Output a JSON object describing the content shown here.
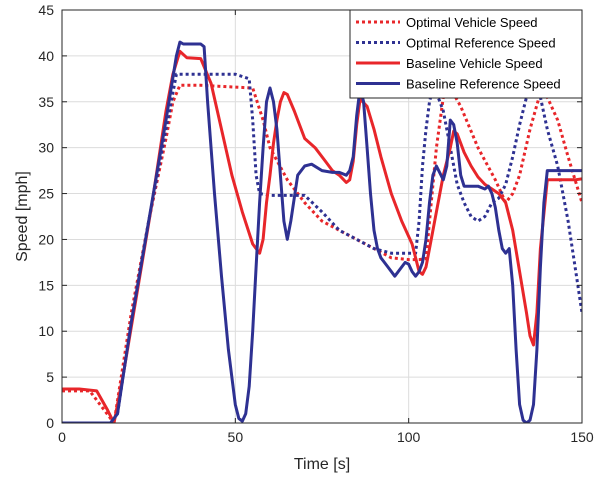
{
  "chart_data": {
    "type": "line",
    "title": "",
    "xlabel": "Time [s]",
    "ylabel": "Speed [mph]",
    "xlim": [
      0,
      150
    ],
    "ylim": [
      0,
      45
    ],
    "xticks": [
      0,
      50,
      100,
      150
    ],
    "yticks": [
      0,
      5,
      10,
      15,
      20,
      25,
      30,
      35,
      40,
      45
    ],
    "grid": true,
    "legend_position": "top-right",
    "series": [
      {
        "name": "Optimal Vehicle Speed",
        "color": "#e8262a",
        "dash": "dotted",
        "x": [
          0,
          8,
          12,
          15,
          20,
          25,
          30,
          32,
          34,
          36,
          40,
          45,
          50,
          55,
          58,
          60,
          65,
          70,
          75,
          80,
          85,
          90,
          95,
          100,
          103,
          105,
          106,
          108,
          110,
          112,
          115,
          120,
          125,
          128,
          130,
          132,
          135,
          138,
          140,
          143,
          146,
          150
        ],
        "y": [
          3.5,
          3.5,
          1.5,
          0,
          12,
          22,
          31,
          35,
          36.8,
          36.8,
          36.8,
          36.7,
          36.6,
          36.5,
          33,
          30,
          26.5,
          24,
          22,
          21,
          20,
          19,
          18,
          17.8,
          17.8,
          17.9,
          22,
          30,
          35.5,
          36.5,
          34.5,
          30,
          26.5,
          24,
          25,
          27,
          32,
          36,
          35.5,
          33,
          29,
          24
        ]
      },
      {
        "name": "Optimal Reference Speed",
        "color": "#2e3192",
        "dash": "dotted",
        "x": [
          0,
          14,
          16,
          20,
          25,
          30,
          33,
          36,
          45,
          50,
          54,
          55,
          56,
          57,
          60,
          65,
          70,
          75,
          80,
          85,
          90,
          95,
          100,
          102,
          103,
          104,
          105,
          106,
          107,
          108,
          110,
          112,
          114,
          116,
          118,
          120,
          122,
          124,
          126,
          128,
          130,
          132,
          134,
          135,
          136,
          137,
          138,
          140,
          143,
          146,
          148,
          150
        ],
        "y": [
          0,
          0,
          1,
          11,
          22,
          32,
          38,
          38,
          38,
          38,
          37.5,
          33,
          27,
          25,
          24.8,
          24.8,
          24.8,
          23,
          21,
          20,
          19,
          18.5,
          18.5,
          18.5,
          22,
          28,
          32,
          35,
          36.5,
          36,
          34,
          30,
          26,
          24,
          22.5,
          22,
          22.5,
          24,
          24.5,
          26,
          29,
          32.5,
          35.5,
          36.5,
          36.5,
          36.4,
          35.5,
          32,
          28,
          22,
          17,
          12
        ]
      },
      {
        "name": "Baseline Vehicle Speed",
        "color": "#e8262a",
        "dash": "solid",
        "x": [
          0,
          5,
          10,
          13,
          15,
          18,
          22,
          26,
          30,
          32,
          34,
          36,
          40,
          43,
          46,
          49,
          52,
          55,
          57,
          58,
          59,
          60,
          61,
          62,
          63,
          64,
          65,
          67,
          70,
          73,
          76,
          78,
          80,
          82,
          83,
          84,
          85,
          86,
          88,
          90,
          92,
          95,
          98,
          101,
          102,
          103,
          104,
          105,
          106,
          108,
          110,
          112,
          113,
          114,
          116,
          118,
          120,
          122,
          124,
          126,
          128,
          130,
          132,
          134,
          135,
          136,
          137,
          138,
          140,
          143,
          146,
          148,
          150
        ],
        "y": [
          3.7,
          3.7,
          3.5,
          1.5,
          0,
          6,
          15,
          24,
          34,
          38,
          40.5,
          39.8,
          39.7,
          37,
          32,
          27,
          23,
          19.5,
          18.5,
          20,
          24,
          27,
          30.5,
          33,
          35,
          36,
          35.8,
          34,
          31,
          30,
          28.5,
          27.5,
          27,
          26.2,
          26.5,
          28.5,
          32.5,
          35.3,
          34.5,
          32,
          29,
          25,
          22,
          19.5,
          18,
          16.5,
          16.2,
          17,
          19,
          23,
          27,
          30,
          31.8,
          31.5,
          29.5,
          28,
          26.8,
          26,
          25.5,
          25,
          24,
          21,
          16.5,
          12,
          9.5,
          8.5,
          12,
          19,
          26.5,
          26.5,
          26.5,
          26.5,
          26.6
        ]
      },
      {
        "name": "Baseline Reference Speed",
        "color": "#2e3192",
        "dash": "solid",
        "x": [
          0,
          14,
          16,
          20,
          25,
          30,
          33,
          34,
          35,
          37,
          40,
          41,
          42,
          44,
          46,
          48,
          50,
          51,
          52,
          53,
          54,
          55,
          56,
          57,
          58,
          59,
          60,
          61,
          62,
          63,
          64,
          65,
          66,
          68,
          70,
          72,
          75,
          78,
          80,
          82,
          83,
          84,
          85,
          86,
          87,
          88,
          89,
          90,
          91,
          92,
          94,
          96,
          98,
          99,
          100,
          101,
          102,
          103,
          104,
          105,
          106,
          107,
          108,
          110,
          111,
          112,
          113,
          114,
          115,
          116,
          118,
          120,
          122,
          123,
          124,
          125,
          126,
          127,
          128,
          129,
          130,
          131,
          132,
          133,
          134,
          135,
          136,
          137,
          138,
          139,
          140,
          141,
          143,
          146,
          148,
          150
        ],
        "y": [
          0,
          0,
          1,
          11,
          22,
          33,
          40,
          41.5,
          41.3,
          41.3,
          41.3,
          41,
          35,
          25,
          16,
          8,
          2,
          0.5,
          0.2,
          1,
          4,
          10,
          17,
          24,
          30,
          35,
          36.5,
          35,
          32,
          27,
          22,
          20,
          22,
          27,
          28,
          28.2,
          27.5,
          27.3,
          27.3,
          27,
          27.5,
          29,
          33.5,
          36.5,
          35,
          30,
          25,
          21,
          19,
          18,
          17,
          16,
          17,
          17.5,
          17.3,
          16.5,
          16,
          16.5,
          17.5,
          20,
          24,
          27,
          28,
          26.5,
          28,
          33,
          32.5,
          30.5,
          27,
          25.8,
          25.8,
          25.8,
          25.5,
          25.8,
          25,
          23.5,
          21,
          19,
          18.5,
          19,
          15,
          8,
          2,
          0.3,
          0,
          0.3,
          2,
          8,
          17,
          24,
          27.5,
          27.5,
          27.5,
          27.5,
          27.5,
          27.5
        ]
      }
    ]
  }
}
